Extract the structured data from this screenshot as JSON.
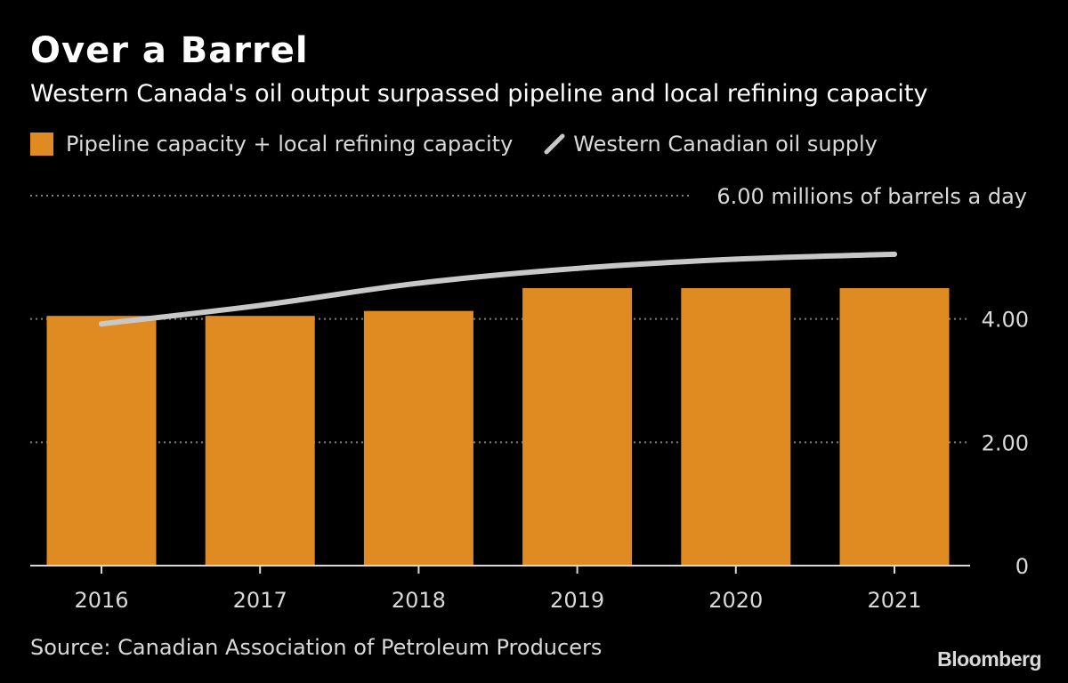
{
  "title": "Over a Barrel",
  "subtitle": "Western Canada's oil output surpassed pipeline and local refining capacity",
  "legend": {
    "bar_label": "Pipeline capacity + local refining capacity",
    "line_label": "Western Canadian oil supply"
  },
  "source": "Source: Canadian Association of Petroleum Producers",
  "brand": "Bloomberg",
  "colors": {
    "background": "#000000",
    "bar": "#e08a22",
    "line": "#c8c8c8",
    "grid": "#7f7f7f",
    "axis": "#d9d9d9"
  },
  "chart_data": {
    "type": "bar",
    "title": "Over a Barrel",
    "subtitle": "Western Canada's oil output surpassed pipeline and local refining capacity",
    "categories": [
      "2016",
      "2017",
      "2018",
      "2019",
      "2020",
      "2021"
    ],
    "series": [
      {
        "name": "Pipeline capacity + local refining capacity",
        "type": "bar",
        "values": [
          4.05,
          4.05,
          4.13,
          4.5,
          4.5,
          4.5
        ]
      },
      {
        "name": "Western Canadian oil supply",
        "type": "line",
        "values": [
          3.92,
          4.22,
          4.58,
          4.82,
          4.97,
          5.05
        ]
      }
    ],
    "ylim": [
      0,
      6
    ],
    "yticks": [
      0,
      2,
      4,
      6
    ],
    "ytick_labels": [
      "0",
      "2.00",
      "4.00",
      "6.00 millions of barrels a day"
    ],
    "xlabel": "",
    "ylabel": "millions of barrels a day",
    "grid": true,
    "legend_position": "top-left"
  }
}
